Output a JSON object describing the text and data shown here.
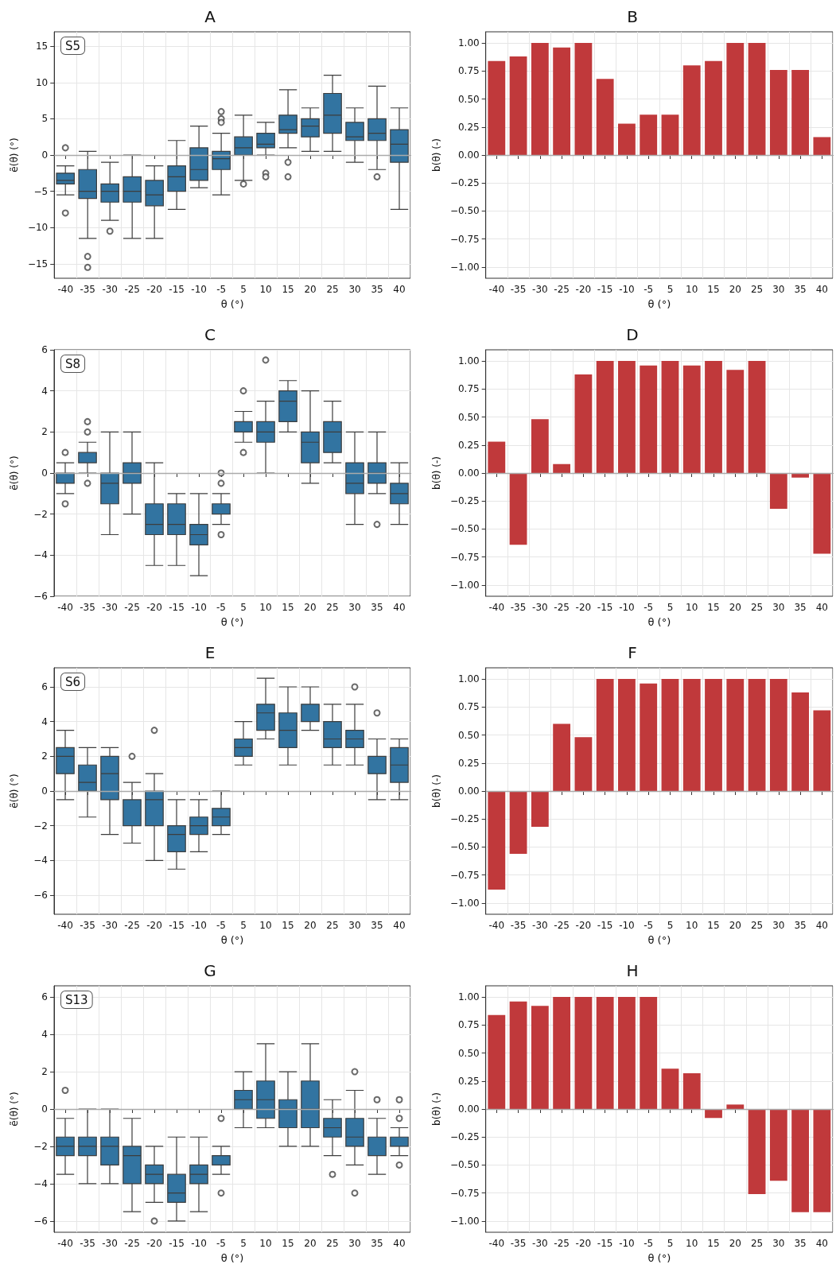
{
  "chart_data": [
    {
      "type": "box",
      "title": "A",
      "xlabel": "θ (°)",
      "ylabel": "ẽ(θ) (°)",
      "annotations": [
        "S5"
      ],
      "color": "#3274a1",
      "grid": true,
      "categories": [
        "-40",
        "-35",
        "-30",
        "-25",
        "-20",
        "-15",
        "-10",
        "-5",
        "5",
        "10",
        "15",
        "20",
        "25",
        "30",
        "35",
        "40"
      ],
      "ylim": [
        -17,
        17
      ],
      "yticks": [
        {
          "value": -15,
          "label": "−15"
        },
        {
          "value": -10,
          "label": "−10"
        },
        {
          "value": -5,
          "label": "−5"
        },
        0,
        5,
        10,
        15
      ],
      "ref_lines": [
        {
          "axis": "y",
          "value": 0,
          "color": "#aaaaaa"
        }
      ],
      "boxes": [
        {
          "low": -5.5,
          "q1": -4,
          "median": -3.5,
          "q3": -2.5,
          "high": -1.5,
          "outliers": [
            1,
            -8
          ]
        },
        {
          "low": -11.5,
          "q1": -6,
          "median": -5,
          "q3": -2,
          "high": 0.5,
          "outliers": [
            -14,
            -15.5
          ]
        },
        {
          "low": -9,
          "q1": -6.5,
          "median": -5,
          "q3": -4,
          "high": -1,
          "outliers": [
            -10.5
          ]
        },
        {
          "low": -11.5,
          "q1": -6.5,
          "median": -5,
          "q3": -3,
          "high": 0
        },
        {
          "low": -11.5,
          "q1": -7,
          "median": -5.5,
          "q3": -3.5,
          "high": -1.5
        },
        {
          "low": -7.5,
          "q1": -5,
          "median": -3,
          "q3": -1.5,
          "high": 2
        },
        {
          "low": -4.5,
          "q1": -3.5,
          "median": -2,
          "q3": 1,
          "high": 4
        },
        {
          "low": -5.5,
          "q1": -2,
          "median": -0.5,
          "q3": 0.5,
          "high": 3,
          "outliers": [
            6,
            5,
            4.5
          ]
        },
        {
          "low": -3.5,
          "q1": 0,
          "median": 1,
          "q3": 2.5,
          "high": 5.5,
          "outliers": [
            -4
          ]
        },
        {
          "low": 0,
          "q1": 1,
          "median": 1.5,
          "q3": 3,
          "high": 4.5,
          "outliers": [
            -2.5,
            -3
          ]
        },
        {
          "low": 1,
          "q1": 3,
          "median": 3.5,
          "q3": 5.5,
          "high": 9,
          "outliers": [
            -1,
            -3
          ]
        },
        {
          "low": 0.5,
          "q1": 2.5,
          "median": 4,
          "q3": 5,
          "high": 6.5
        },
        {
          "low": 0.5,
          "q1": 3,
          "median": 5.5,
          "q3": 8.5,
          "high": 11
        },
        {
          "low": -1,
          "q1": 2,
          "median": 2.5,
          "q3": 4.5,
          "high": 6.5
        },
        {
          "low": -2,
          "q1": 2,
          "median": 3,
          "q3": 5,
          "high": 9.5,
          "outliers": [
            -3
          ]
        },
        {
          "low": -7.5,
          "q1": -1,
          "median": 1.5,
          "q3": 3.5,
          "high": 6.5
        }
      ]
    },
    {
      "type": "bar",
      "title": "B",
      "xlabel": "θ (°)",
      "ylabel": "b(θ) (-)",
      "color": "#c0393b",
      "grid": true,
      "categories": [
        "-40",
        "-35",
        "-30",
        "-25",
        "-20",
        "-15",
        "-10",
        "-5",
        "5",
        "10",
        "15",
        "20",
        "25",
        "30",
        "35",
        "40"
      ],
      "ylim": [
        -1.1,
        1.1
      ],
      "yticks": [
        {
          "value": -1,
          "label": "−1.00"
        },
        {
          "value": -0.75,
          "label": "−0.75"
        },
        {
          "value": -0.5,
          "label": "−0.50"
        },
        {
          "value": -0.25,
          "label": "−0.25"
        },
        {
          "value": 0,
          "label": "0.00"
        },
        {
          "value": 0.25,
          "label": "0.25"
        },
        {
          "value": 0.5,
          "label": "0.50"
        },
        {
          "value": 0.75,
          "label": "0.75"
        },
        {
          "value": 1,
          "label": "1.00"
        }
      ],
      "ref_lines": [
        {
          "axis": "y",
          "value": 0,
          "color": "#aaaaaa"
        }
      ],
      "values": [
        0.84,
        0.88,
        1,
        0.96,
        1,
        0.68,
        0.28,
        0.36,
        0.36,
        0.8,
        0.84,
        1,
        1,
        0.76,
        0.76,
        0.16
      ]
    },
    {
      "type": "box",
      "title": "C",
      "xlabel": "θ (°)",
      "ylabel": "ẽ(θ) (°)",
      "annotations": [
        "S8"
      ],
      "color": "#3274a1",
      "grid": true,
      "categories": [
        "-40",
        "-35",
        "-30",
        "-25",
        "-20",
        "-15",
        "-10",
        "-5",
        "5",
        "10",
        "15",
        "20",
        "25",
        "30",
        "35",
        "40"
      ],
      "ylim": [
        -6,
        6
      ],
      "yticks": [
        {
          "value": -6,
          "label": "−6"
        },
        {
          "value": -4,
          "label": "−4"
        },
        {
          "value": -2,
          "label": "−2"
        },
        0,
        2,
        4,
        6
      ],
      "ref_lines": [
        {
          "axis": "y",
          "value": 0,
          "color": "#aaaaaa"
        }
      ],
      "boxes": [
        {
          "low": -1,
          "q1": -0.5,
          "median": 0,
          "q3": 0,
          "high": 0.5,
          "outliers": [
            1,
            -1.5
          ]
        },
        {
          "low": 0,
          "q1": 0.5,
          "median": 1,
          "q3": 1,
          "high": 1.5,
          "outliers": [
            2.5,
            2,
            -0.5
          ]
        },
        {
          "low": -3,
          "q1": -1.5,
          "median": -0.5,
          "q3": 0,
          "high": 2
        },
        {
          "low": -2,
          "q1": -0.5,
          "median": 0,
          "q3": 0.5,
          "high": 2
        },
        {
          "low": -4.5,
          "q1": -3,
          "median": -2.5,
          "q3": -1.5,
          "high": 0.5
        },
        {
          "low": -4.5,
          "q1": -3,
          "median": -2.5,
          "q3": -1.5,
          "high": -1
        },
        {
          "low": -5,
          "q1": -3.5,
          "median": -3,
          "q3": -2.5,
          "high": -1
        },
        {
          "low": -2.5,
          "q1": -2,
          "median": -2,
          "q3": -1.5,
          "high": -1,
          "outliers": [
            0,
            -0.5,
            -3
          ]
        },
        {
          "low": 1.5,
          "q1": 2,
          "median": 2,
          "q3": 2.5,
          "high": 3,
          "outliers": [
            4,
            1
          ]
        },
        {
          "low": 0,
          "q1": 1.5,
          "median": 2,
          "q3": 2.5,
          "high": 3.5,
          "outliers": [
            5.5
          ]
        },
        {
          "low": 2,
          "q1": 2.5,
          "median": 3.5,
          "q3": 4,
          "high": 4.5
        },
        {
          "low": -0.5,
          "q1": 0.5,
          "median": 1.5,
          "q3": 2,
          "high": 4
        },
        {
          "low": 0.5,
          "q1": 1,
          "median": 2,
          "q3": 2.5,
          "high": 3.5
        },
        {
          "low": -2.5,
          "q1": -1,
          "median": -0.5,
          "q3": 0.5,
          "high": 2
        },
        {
          "low": -1,
          "q1": -0.5,
          "median": 0,
          "q3": 0.5,
          "high": 2,
          "outliers": [
            -2.5
          ]
        },
        {
          "low": -2.5,
          "q1": -1.5,
          "median": -1,
          "q3": -0.5,
          "high": 0.5
        }
      ]
    },
    {
      "type": "bar",
      "title": "D",
      "xlabel": "θ (°)",
      "ylabel": "b(θ) (-)",
      "color": "#c0393b",
      "grid": true,
      "categories": [
        "-40",
        "-35",
        "-30",
        "-25",
        "-20",
        "-15",
        "-10",
        "-5",
        "5",
        "10",
        "15",
        "20",
        "25",
        "30",
        "35",
        "40"
      ],
      "ylim": [
        -1.1,
        1.1
      ],
      "yticks": [
        {
          "value": -1,
          "label": "−1.00"
        },
        {
          "value": -0.75,
          "label": "−0.75"
        },
        {
          "value": -0.5,
          "label": "−0.50"
        },
        {
          "value": -0.25,
          "label": "−0.25"
        },
        {
          "value": 0,
          "label": "0.00"
        },
        {
          "value": 0.25,
          "label": "0.25"
        },
        {
          "value": 0.5,
          "label": "0.50"
        },
        {
          "value": 0.75,
          "label": "0.75"
        },
        {
          "value": 1,
          "label": "1.00"
        }
      ],
      "ref_lines": [
        {
          "axis": "y",
          "value": 0,
          "color": "#aaaaaa"
        }
      ],
      "values": [
        0.28,
        -0.64,
        0.48,
        0.08,
        0.88,
        1,
        1,
        0.96,
        1,
        0.96,
        1,
        0.92,
        1,
        -0.32,
        -0.04,
        -0.72
      ]
    },
    {
      "type": "box",
      "title": "E",
      "xlabel": "θ (°)",
      "ylabel": "ẽ(θ) (°)",
      "annotations": [
        "S6"
      ],
      "color": "#3274a1",
      "grid": true,
      "categories": [
        "-40",
        "-35",
        "-30",
        "-25",
        "-20",
        "-15",
        "-10",
        "-5",
        "5",
        "10",
        "15",
        "20",
        "25",
        "30",
        "35",
        "40"
      ],
      "ylim": [
        -7.1,
        7.1
      ],
      "yticks": [
        {
          "value": -6,
          "label": "−6"
        },
        {
          "value": -4,
          "label": "−4"
        },
        {
          "value": -2,
          "label": "−2"
        },
        0,
        2,
        4,
        6
      ],
      "ref_lines": [
        {
          "axis": "y",
          "value": 0,
          "color": "#aaaaaa"
        }
      ],
      "boxes": [
        {
          "low": -0.5,
          "q1": 1,
          "median": 2,
          "q3": 2.5,
          "high": 3.5
        },
        {
          "low": -1.5,
          "q1": 0,
          "median": 0.5,
          "q3": 1.5,
          "high": 2.5
        },
        {
          "low": -2.5,
          "q1": -0.5,
          "median": 1,
          "q3": 2,
          "high": 2.5
        },
        {
          "low": -3,
          "q1": -2,
          "median": -0.5,
          "q3": -0.5,
          "high": 0.5,
          "outliers": [
            2
          ]
        },
        {
          "low": -4,
          "q1": -2,
          "median": -0.5,
          "q3": 0,
          "high": 1,
          "outliers": [
            3.5
          ]
        },
        {
          "low": -4.5,
          "q1": -3.5,
          "median": -2.5,
          "q3": -2,
          "high": -0.5
        },
        {
          "low": -3.5,
          "q1": -2.5,
          "median": -2,
          "q3": -1.5,
          "high": -0.5
        },
        {
          "low": -2.5,
          "q1": -2,
          "median": -1.5,
          "q3": -1,
          "high": 0
        },
        {
          "low": 1.5,
          "q1": 2,
          "median": 2.5,
          "q3": 3,
          "high": 4
        },
        {
          "low": 3,
          "q1": 3.5,
          "median": 4.5,
          "q3": 5,
          "high": 6.5
        },
        {
          "low": 1.5,
          "q1": 2.5,
          "median": 3.5,
          "q3": 4.5,
          "high": 6
        },
        {
          "low": 3.5,
          "q1": 4,
          "median": 5,
          "q3": 5,
          "high": 6
        },
        {
          "low": 1.5,
          "q1": 2.5,
          "median": 3,
          "q3": 4,
          "high": 5
        },
        {
          "low": 1.5,
          "q1": 2.5,
          "median": 3,
          "q3": 3.5,
          "high": 5,
          "outliers": [
            6
          ]
        },
        {
          "low": -0.5,
          "q1": 1,
          "median": 2,
          "q3": 2,
          "high": 3,
          "outliers": [
            4.5
          ]
        },
        {
          "low": -0.5,
          "q1": 0.5,
          "median": 1.5,
          "q3": 2.5,
          "high": 3
        }
      ]
    },
    {
      "type": "bar",
      "title": "F",
      "xlabel": "θ (°)",
      "ylabel": "b(θ) (-)",
      "color": "#c0393b",
      "grid": true,
      "categories": [
        "-40",
        "-35",
        "-30",
        "-25",
        "-20",
        "-15",
        "-10",
        "-5",
        "5",
        "10",
        "15",
        "20",
        "25",
        "30",
        "35",
        "40"
      ],
      "ylim": [
        -1.1,
        1.1
      ],
      "yticks": [
        {
          "value": -1,
          "label": "−1.00"
        },
        {
          "value": -0.75,
          "label": "−0.75"
        },
        {
          "value": -0.5,
          "label": "−0.50"
        },
        {
          "value": -0.25,
          "label": "−0.25"
        },
        {
          "value": 0,
          "label": "0.00"
        },
        {
          "value": 0.25,
          "label": "0.25"
        },
        {
          "value": 0.5,
          "label": "0.50"
        },
        {
          "value": 0.75,
          "label": "0.75"
        },
        {
          "value": 1,
          "label": "1.00"
        }
      ],
      "ref_lines": [
        {
          "axis": "y",
          "value": 0,
          "color": "#aaaaaa"
        }
      ],
      "values": [
        -0.88,
        -0.56,
        -0.32,
        0.6,
        0.48,
        1,
        1,
        0.96,
        1,
        1,
        1,
        1,
        1,
        1,
        0.88,
        0.72
      ]
    },
    {
      "type": "box",
      "title": "G",
      "xlabel": "θ (°)",
      "ylabel": "ẽ(θ) (°)",
      "annotations": [
        "S13"
      ],
      "color": "#3274a1",
      "grid": true,
      "categories": [
        "-40",
        "-35",
        "-30",
        "-25",
        "-20",
        "-15",
        "-10",
        "-5",
        "5",
        "10",
        "15",
        "20",
        "25",
        "30",
        "35",
        "40"
      ],
      "ylim": [
        -6.6,
        6.6
      ],
      "yticks": [
        {
          "value": -6,
          "label": "−6"
        },
        {
          "value": -4,
          "label": "−4"
        },
        {
          "value": -2,
          "label": "−2"
        },
        0,
        2,
        4,
        6
      ],
      "ref_lines": [
        {
          "axis": "y",
          "value": 0,
          "color": "#aaaaaa"
        }
      ],
      "boxes": [
        {
          "low": -3.5,
          "q1": -2.5,
          "median": -2,
          "q3": -1.5,
          "high": -0.5,
          "outliers": [
            1
          ]
        },
        {
          "low": -4,
          "q1": -2.5,
          "median": -2,
          "q3": -1.5,
          "high": 0
        },
        {
          "low": -4,
          "q1": -3,
          "median": -2,
          "q3": -1.5,
          "high": 0
        },
        {
          "low": -5.5,
          "q1": -4,
          "median": -2.5,
          "q3": -2,
          "high": -0.5
        },
        {
          "low": -5,
          "q1": -4,
          "median": -3.5,
          "q3": -3,
          "high": -2,
          "outliers": [
            -6
          ]
        },
        {
          "low": -6,
          "q1": -5,
          "median": -4.5,
          "q3": -3.5,
          "high": -1.5
        },
        {
          "low": -5.5,
          "q1": -4,
          "median": -3.5,
          "q3": -3,
          "high": -1.5
        },
        {
          "low": -3.5,
          "q1": -3,
          "median": -2.5,
          "q3": -2.5,
          "high": -2,
          "outliers": [
            -0.5,
            -4.5
          ]
        },
        {
          "low": -1,
          "q1": 0,
          "median": 0.5,
          "q3": 1,
          "high": 2
        },
        {
          "low": -1,
          "q1": -0.5,
          "median": 0.5,
          "q3": 1.5,
          "high": 3.5
        },
        {
          "low": -2,
          "q1": -1,
          "median": 0,
          "q3": 0.5,
          "high": 2
        },
        {
          "low": -2,
          "q1": -1,
          "median": 0,
          "q3": 1.5,
          "high": 3.5
        },
        {
          "low": -2.5,
          "q1": -1.5,
          "median": -1,
          "q3": -0.5,
          "high": 0.5,
          "outliers": [
            -3.5
          ]
        },
        {
          "low": -3,
          "q1": -2,
          "median": -1.5,
          "q3": -0.5,
          "high": 1,
          "outliers": [
            2,
            -4.5
          ]
        },
        {
          "low": -3.5,
          "q1": -2.5,
          "median": -2.5,
          "q3": -1.5,
          "high": -0.5,
          "outliers": [
            0.5
          ]
        },
        {
          "low": -2.5,
          "q1": -2,
          "median": -2,
          "q3": -1.5,
          "high": -1,
          "outliers": [
            0.5,
            -0.5,
            -3
          ]
        }
      ]
    },
    {
      "type": "bar",
      "title": "H",
      "xlabel": "θ (°)",
      "ylabel": "b(θ) (-)",
      "color": "#c0393b",
      "grid": true,
      "categories": [
        "-40",
        "-35",
        "-30",
        "-25",
        "-20",
        "-15",
        "-10",
        "-5",
        "5",
        "10",
        "15",
        "20",
        "25",
        "30",
        "35",
        "40"
      ],
      "ylim": [
        -1.1,
        1.1
      ],
      "yticks": [
        {
          "value": -1,
          "label": "−1.00"
        },
        {
          "value": -0.75,
          "label": "−0.75"
        },
        {
          "value": -0.5,
          "label": "−0.50"
        },
        {
          "value": -0.25,
          "label": "−0.25"
        },
        {
          "value": 0,
          "label": "0.00"
        },
        {
          "value": 0.25,
          "label": "0.25"
        },
        {
          "value": 0.5,
          "label": "0.50"
        },
        {
          "value": 0.75,
          "label": "0.75"
        },
        {
          "value": 1,
          "label": "1.00"
        }
      ],
      "ref_lines": [
        {
          "axis": "y",
          "value": 0,
          "color": "#aaaaaa"
        }
      ],
      "values": [
        0.84,
        0.96,
        0.92,
        1,
        1,
        1,
        1,
        1,
        0.36,
        0.32,
        -0.08,
        0.04,
        -0.76,
        -0.64,
        -0.92,
        -0.92
      ]
    }
  ]
}
